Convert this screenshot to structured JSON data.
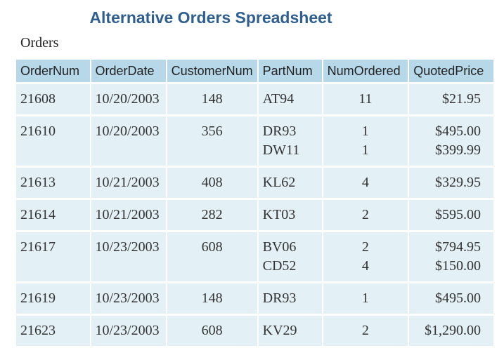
{
  "title": "Alternative Orders Spreadsheet",
  "caption": "Orders",
  "columns": [
    "OrderNum",
    "OrderDate",
    "CustomerNum",
    "PartNum",
    "NumOrdered",
    "QuotedPrice"
  ],
  "rows": [
    {
      "order_num": "21608",
      "order_date": "10/20/2003",
      "customer_num": "148",
      "parts": [
        "AT94"
      ],
      "num_ordered": [
        "11"
      ],
      "quoted_price": [
        "$21.95"
      ]
    },
    {
      "order_num": "21610",
      "order_date": "10/20/2003",
      "customer_num": "356",
      "parts": [
        "DR93",
        "DW11"
      ],
      "num_ordered": [
        "1",
        "1"
      ],
      "quoted_price": [
        "$495.00",
        "$399.99"
      ]
    },
    {
      "order_num": "21613",
      "order_date": "10/21/2003",
      "customer_num": "408",
      "parts": [
        "KL62"
      ],
      "num_ordered": [
        "4"
      ],
      "quoted_price": [
        "$329.95"
      ]
    },
    {
      "order_num": "21614",
      "order_date": "10/21/2003",
      "customer_num": "282",
      "parts": [
        "KT03"
      ],
      "num_ordered": [
        "2"
      ],
      "quoted_price": [
        "$595.00"
      ]
    },
    {
      "order_num": "21617",
      "order_date": "10/23/2003",
      "customer_num": "608",
      "parts": [
        "BV06",
        "CD52"
      ],
      "num_ordered": [
        "2",
        "4"
      ],
      "quoted_price": [
        "$794.95",
        "$150.00"
      ]
    },
    {
      "order_num": "21619",
      "order_date": "10/23/2003",
      "customer_num": "148",
      "parts": [
        "DR93"
      ],
      "num_ordered": [
        "1"
      ],
      "quoted_price": [
        "$495.00"
      ]
    },
    {
      "order_num": "21623",
      "order_date": "10/23/2003",
      "customer_num": "608",
      "parts": [
        "KV29"
      ],
      "num_ordered": [
        "2"
      ],
      "quoted_price": [
        "$1,290.00"
      ]
    }
  ],
  "colors": {
    "title": "#2f5f91",
    "header_bg": "#b7d8e8",
    "cell_bg": "#e3f1f7"
  }
}
